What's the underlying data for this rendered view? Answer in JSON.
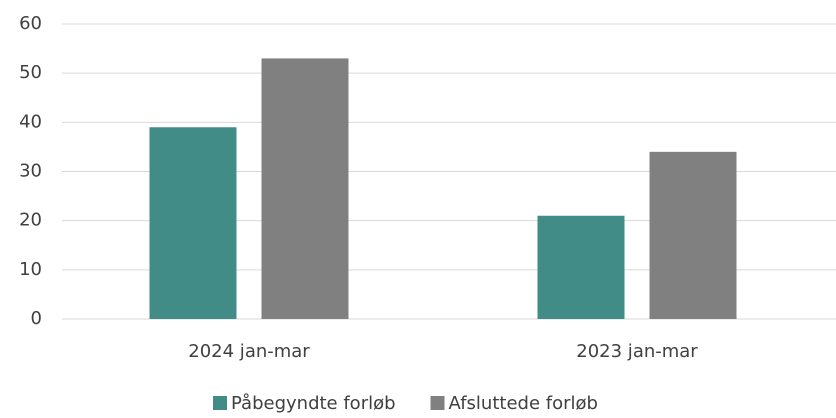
{
  "chart_data": {
    "type": "bar",
    "categories": [
      "2024 jan-mar",
      "2023 jan-mar"
    ],
    "series": [
      {
        "name": "Påbegyndte forløb",
        "color": "#428c88",
        "values": [
          39,
          21
        ]
      },
      {
        "name": "Afsluttede forløb",
        "color": "#808080",
        "values": [
          53,
          34
        ]
      }
    ],
    "ylim": [
      0,
      60
    ],
    "yticks": [
      0,
      10,
      20,
      30,
      40,
      50,
      60
    ],
    "grid": true,
    "legend": "bottom"
  }
}
